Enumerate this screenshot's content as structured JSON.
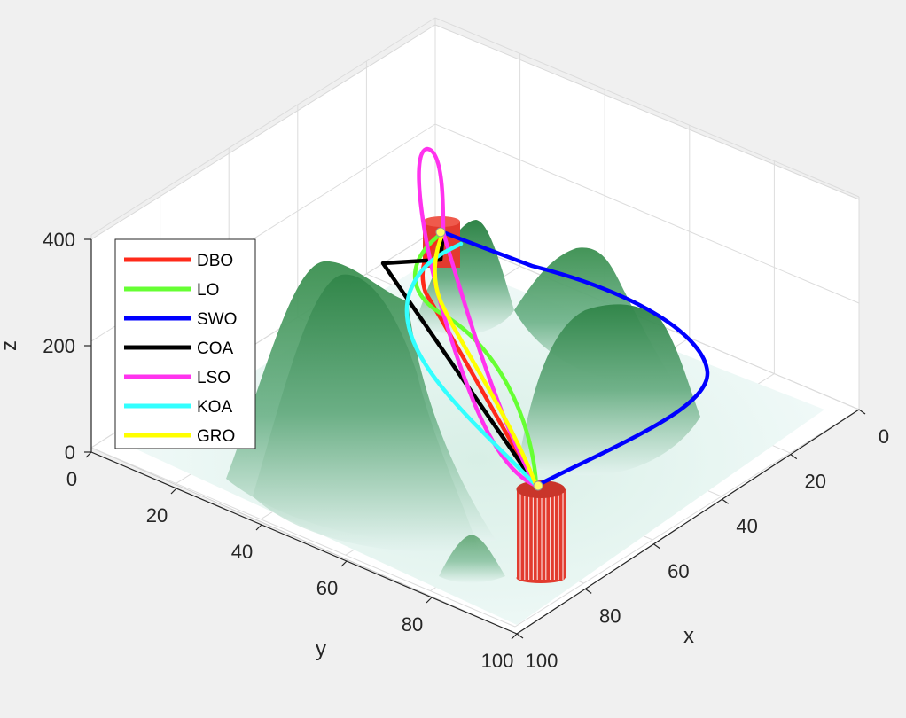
{
  "chart_data": {
    "type": "line",
    "title": "",
    "xlabel": "x",
    "ylabel": "y",
    "zlabel": "z",
    "xlim": [
      0,
      100
    ],
    "ylim": [
      0,
      100
    ],
    "zlim": [
      0,
      400
    ],
    "x_ticks": [
      "0",
      "20",
      "40",
      "60",
      "80",
      "100"
    ],
    "y_ticks": [
      "0",
      "20",
      "40",
      "60",
      "80",
      "100"
    ],
    "z_ticks": [
      "0",
      "200",
      "400"
    ],
    "grid": true,
    "legend_position": "top-left",
    "surface_color": "#3a8f55",
    "obstacle_color": "#e23b2e",
    "series": [
      {
        "name": "DBO",
        "color": "#ff2a1a"
      },
      {
        "name": "LO",
        "color": "#66ff33"
      },
      {
        "name": "SWO",
        "color": "#0000ff"
      },
      {
        "name": "COA",
        "color": "#000000"
      },
      {
        "name": "LSO",
        "color": "#ff33ee"
      },
      {
        "name": "KOA",
        "color": "#33ffff"
      },
      {
        "name": "GRO",
        "color": "#ffff00"
      }
    ]
  }
}
